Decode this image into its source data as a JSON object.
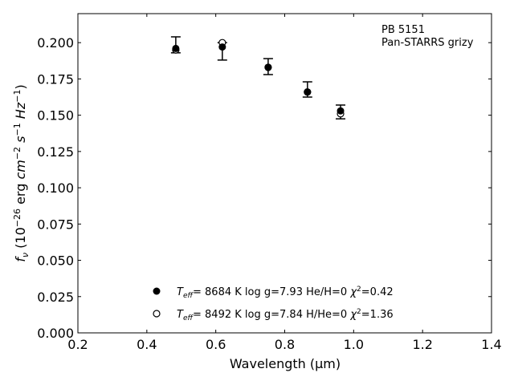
{
  "chart_data": {
    "type": "scatter",
    "xlabel": "Wavelength (μm)",
    "ylabel": "f_ν (10^-26 erg cm^-2 s^-1 Hz^-1)",
    "xlim": [
      0.2,
      1.4
    ],
    "ylim": [
      0,
      0.22
    ],
    "xticks": [
      "0.2",
      "0.4",
      "0.6",
      "0.8",
      "1.0",
      "1.2",
      "1.4"
    ],
    "yticks": [
      "0.000",
      "0.025",
      "0.050",
      "0.075",
      "0.100",
      "0.125",
      "0.150",
      "0.175",
      "0.200"
    ],
    "annotation": [
      "PB 5151",
      "Pan-STARRS grizy"
    ],
    "observed": {
      "x": [
        0.484,
        0.619,
        0.752,
        0.866,
        0.962
      ],
      "y": [
        0.196,
        0.197,
        0.183,
        0.166,
        0.153
      ],
      "err_low": [
        0.193,
        0.188,
        0.178,
        0.1625,
        0.1475
      ],
      "err_high": [
        0.204,
        0.2,
        0.189,
        0.173,
        0.157
      ]
    },
    "series": [
      {
        "name": "Teff= 8684 K  log g=7.93  He/H=0  χ²=0.42",
        "marker": "filled",
        "teff": "8684 K",
        "logg": "log g=7.93",
        "comp": "He/H=0",
        "chi2": "=0.42",
        "x": [
          0.484,
          0.619,
          0.752,
          0.866,
          0.962
        ],
        "y": [
          0.196,
          0.197,
          0.183,
          0.166,
          0.153
        ]
      },
      {
        "name": "Teff= 8492 K  log g=7.84  H/He=0  χ²=1.36",
        "marker": "open",
        "teff": "8492 K",
        "logg": "log g=7.84",
        "comp": "H/He=0",
        "chi2": "=1.36",
        "x": [
          0.484,
          0.619,
          0.752,
          0.866,
          0.962
        ],
        "y": [
          0.195,
          0.2,
          0.183,
          0.166,
          0.151
        ]
      }
    ]
  }
}
